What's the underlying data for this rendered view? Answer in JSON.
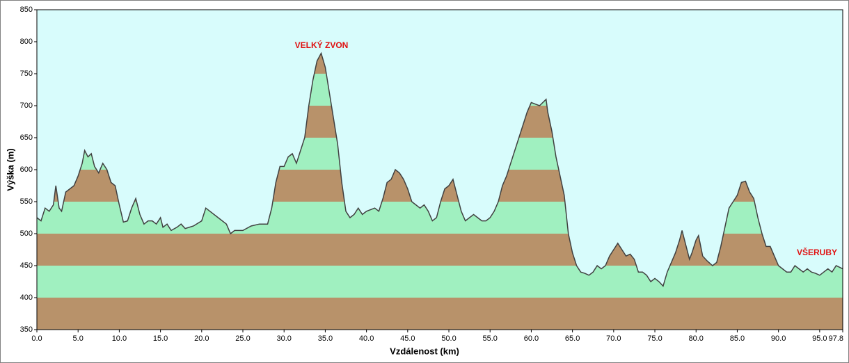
{
  "chart_data": {
    "type": "area",
    "title": null,
    "x_label": "Vzdálenost   (km)",
    "y_label": "Výška (m)",
    "annotations": [
      "VELKÝ ZVON",
      "VŠERUBY"
    ],
    "line_color": "#404040",
    "band_colors": [
      "#b8926a",
      "#a0f0c0"
    ],
    "background": "#d8fcfc",
    "xlim": [
      0,
      97.8
    ],
    "ylim": [
      350,
      850
    ],
    "xticks": [
      {
        "value": 0,
        "label": "0.0"
      },
      {
        "value": 5,
        "label": "5.0"
      },
      {
        "value": 10,
        "label": "10.0"
      },
      {
        "value": 15,
        "label": "15.0"
      },
      {
        "value": 20,
        "label": "20.0"
      },
      {
        "value": 25,
        "label": "25.0"
      },
      {
        "value": 30,
        "label": "30.0"
      },
      {
        "value": 35,
        "label": "35.0"
      },
      {
        "value": 40,
        "label": "40.0"
      },
      {
        "value": 45,
        "label": "45.0"
      },
      {
        "value": 50,
        "label": "50.0"
      },
      {
        "value": 55,
        "label": "55.0"
      },
      {
        "value": 60,
        "label": "60.0"
      },
      {
        "value": 65,
        "label": "65.0"
      },
      {
        "value": 70,
        "label": "70.0"
      },
      {
        "value": 75,
        "label": "75.0"
      },
      {
        "value": 80,
        "label": "80.0"
      },
      {
        "value": 85,
        "label": "85.0"
      },
      {
        "value": 90,
        "label": "90.0"
      },
      {
        "value": 95,
        "label": "95.0"
      },
      97.8
    ],
    "yticks": [
      350,
      400,
      450,
      500,
      550,
      600,
      650,
      700,
      750,
      800,
      850
    ],
    "x": [
      0,
      0.5,
      1,
      1.5,
      2,
      2.3,
      2.7,
      3,
      3.5,
      4,
      4.5,
      5,
      5.5,
      5.8,
      6.2,
      6.6,
      7,
      7.5,
      8,
      8.5,
      9,
      9.5,
      10,
      10.5,
      11,
      11.5,
      12,
      12.5,
      13,
      13.5,
      14,
      14.5,
      15,
      15.3,
      15.8,
      16.3,
      17,
      17.5,
      18,
      19,
      20,
      20.5,
      21,
      22,
      23,
      23.5,
      24,
      25,
      26,
      27,
      28,
      28.5,
      29,
      29.5,
      30,
      30.5,
      31,
      31.5,
      32,
      32.5,
      33,
      33.5,
      34,
      34.5,
      35,
      35.5,
      36,
      36.5,
      37,
      37.5,
      38,
      38.5,
      39,
      39.5,
      40,
      41,
      41.5,
      42,
      42.5,
      43,
      43.5,
      44,
      44.5,
      45,
      45.5,
      46,
      46.5,
      47,
      47.5,
      48,
      48.5,
      49,
      49.5,
      50,
      50.5,
      51,
      51.5,
      52,
      52.5,
      53,
      53.5,
      54,
      54.5,
      55,
      55.5,
      56,
      56.5,
      57,
      57.5,
      58,
      58.5,
      59,
      59.5,
      60,
      61,
      61.8,
      62,
      62.5,
      63,
      63.5,
      64,
      64.5,
      65,
      65.5,
      66,
      66.5,
      67,
      67.5,
      68,
      68.5,
      69,
      69.5,
      70,
      70.5,
      71,
      71.5,
      72,
      72.5,
      73,
      73.5,
      74,
      74.5,
      75,
      75.5,
      76,
      76.5,
      77,
      77.5,
      78,
      78.3,
      78.8,
      79.2,
      79.5,
      80,
      80.3,
      80.8,
      81.3,
      82,
      82.5,
      83,
      83.5,
      84,
      84.5,
      85,
      85.5,
      86,
      86.5,
      87,
      87.5,
      88,
      88.5,
      89,
      89.5,
      90,
      90.5,
      91,
      91.5,
      92,
      92.5,
      93,
      93.5,
      94,
      94.5,
      95,
      95.5,
      96,
      96.5,
      97,
      97.8
    ],
    "values": [
      525,
      520,
      540,
      535,
      545,
      575,
      540,
      535,
      565,
      570,
      575,
      590,
      610,
      630,
      620,
      625,
      605,
      595,
      610,
      600,
      580,
      575,
      545,
      518,
      520,
      540,
      555,
      530,
      515,
      520,
      520,
      515,
      525,
      510,
      515,
      505,
      510,
      515,
      508,
      512,
      520,
      540,
      535,
      525,
      515,
      500,
      505,
      505,
      512,
      515,
      515,
      540,
      580,
      605,
      605,
      620,
      625,
      610,
      630,
      650,
      700,
      740,
      770,
      782,
      760,
      720,
      680,
      640,
      580,
      535,
      525,
      530,
      540,
      530,
      535,
      540,
      535,
      555,
      580,
      585,
      600,
      595,
      585,
      570,
      550,
      545,
      540,
      545,
      535,
      520,
      525,
      550,
      570,
      575,
      585,
      560,
      535,
      520,
      525,
      530,
      525,
      520,
      520,
      525,
      535,
      550,
      575,
      590,
      610,
      630,
      650,
      670,
      690,
      705,
      700,
      710,
      690,
      660,
      620,
      590,
      560,
      500,
      470,
      450,
      440,
      438,
      435,
      440,
      450,
      445,
      450,
      465,
      475,
      485,
      475,
      465,
      468,
      460,
      440,
      440,
      435,
      425,
      430,
      425,
      418,
      440,
      455,
      470,
      490,
      505,
      480,
      460,
      470,
      490,
      497,
      465,
      458,
      450,
      455,
      480,
      510,
      540,
      550,
      560,
      580,
      582,
      565,
      555,
      525,
      500,
      480,
      480,
      465,
      450,
      445,
      440,
      440,
      450,
      445,
      440,
      445,
      440,
      438,
      435,
      440,
      445,
      440,
      450,
      445
    ]
  }
}
